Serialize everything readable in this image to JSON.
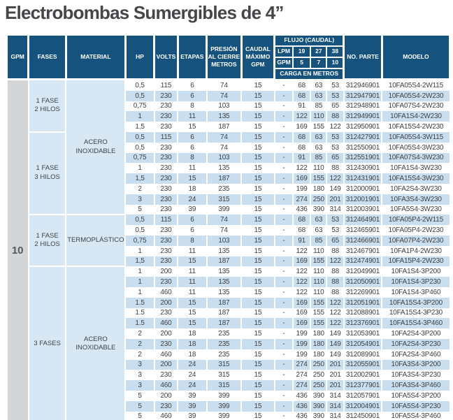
{
  "title": "Electrobombas Sumergibles de 4”",
  "colors": {
    "header_bg": "#15527e",
    "stripe": "#c9dff0",
    "group_bg": "#d7e8f4",
    "gpm_bg": "#d3d5d6",
    "text": "#3e4144"
  },
  "table": {
    "header": {
      "gpm": "GPM",
      "fases": "FASES",
      "material": "MATERIAL",
      "hp": "HP",
      "volts": "VOLTS",
      "etapas": "ETAPAS",
      "presion": "PRESIÓN\nAL CIERRE\nMETROS",
      "caudal": "CAUDAL\nMÁXIMO\nGPM",
      "flujo": "FLUJO (CAUDAL)",
      "lpm_label": "LPM",
      "lpm_values": [
        "19",
        "27",
        "38"
      ],
      "gpm_row_label": "GPM",
      "gpm_row_values": [
        "5",
        "7",
        "10"
      ],
      "carga": "CARGA EN METROS",
      "no_parte": "NO. PARTE",
      "modelo": "MODELO"
    },
    "gpm_value": "10",
    "col_names": [
      "hp",
      "volts",
      "etapas",
      "presion-cierre",
      "caudal-maximo",
      "flujo-dash",
      "carga-19",
      "carga-27",
      "carga-38",
      "no-parte",
      "modelo"
    ],
    "fases_groups": [
      {
        "label": [
          "1 FASE",
          "2 HILOS"
        ],
        "rows": 5
      },
      {
        "label": [
          "1 FASE",
          "3 HILOS"
        ],
        "rows": 8
      },
      {
        "label": [
          "1 FASE",
          "2 HILOS"
        ],
        "rows": 5
      },
      {
        "label": [
          "3 FASES"
        ],
        "rows": 15
      }
    ],
    "material_groups": [
      {
        "label": [
          "ACERO",
          "INOXIDABLE"
        ],
        "rows": 13
      },
      {
        "label": [
          "TERMOPLÁSTICO"
        ],
        "rows": 5
      },
      {
        "label": [
          "ACERO",
          "INOXIDABLE"
        ],
        "rows": 15
      }
    ],
    "rows": [
      [
        "0,5",
        "115",
        "6",
        "74",
        "15",
        "-",
        "68",
        "63",
        "53",
        "312946901",
        "10FA05S4-2W115"
      ],
      [
        "0,5",
        "230",
        "6",
        "74",
        "15",
        "-",
        "68",
        "63",
        "53",
        "312947901",
        "10FA05S4-2W230"
      ],
      [
        "0,75",
        "230",
        "8",
        "103",
        "15",
        "-",
        "91",
        "85",
        "65",
        "312948901",
        "10FA07S4-2W230"
      ],
      [
        "1",
        "230",
        "11",
        "135",
        "15",
        "-",
        "122",
        "110",
        "88",
        "312949901",
        "10FA1S4-2W230"
      ],
      [
        "1,5",
        "230",
        "15",
        "187",
        "15",
        "-",
        "169",
        "155",
        "122",
        "312950901",
        "10FA15S4-2W230"
      ],
      [
        "0,5",
        "115",
        "6",
        "74",
        "15",
        "-",
        "68",
        "63",
        "53",
        "312427901",
        "10FA05S4-3W115"
      ],
      [
        "0,5",
        "230",
        "6",
        "74",
        "15",
        "-",
        "68",
        "63",
        "53",
        "312550901",
        "10FA05S4-3W230"
      ],
      [
        "0,75",
        "230",
        "8",
        "103",
        "15",
        "-",
        "91",
        "85",
        "65",
        "312551901",
        "10FA07S4-3W230"
      ],
      [
        "1",
        "230",
        "11",
        "135",
        "15",
        "-",
        "122",
        "110",
        "88",
        "312430901",
        "10FA1S4-3W230"
      ],
      [
        "1,5",
        "230",
        "15",
        "187",
        "15",
        "-",
        "169",
        "155",
        "122",
        "312431901",
        "10FA15S4-3W230"
      ],
      [
        "2",
        "230",
        "18",
        "235",
        "15",
        "-",
        "199",
        "180",
        "149",
        "312000901",
        "10FA2S4-3W230"
      ],
      [
        "3",
        "230",
        "24",
        "315",
        "15",
        "-",
        "274",
        "250",
        "201",
        "312001901",
        "10FA3S4-3W230"
      ],
      [
        "5",
        "230",
        "39",
        "399",
        "15",
        "-",
        "436",
        "390",
        "314",
        "312003901",
        "10FA5S4-3W230"
      ],
      [
        "0,5",
        "115",
        "6",
        "74",
        "15",
        "-",
        "68",
        "63",
        "53",
        "312464901",
        "10FA05P4-2W115"
      ],
      [
        "0,5",
        "230",
        "6",
        "74",
        "15",
        "-",
        "68",
        "63",
        "53",
        "312465901",
        "10FA05P4-2W230"
      ],
      [
        "0,75",
        "230",
        "8",
        "103",
        "15",
        "-",
        "91",
        "85",
        "65",
        "312466901",
        "10FA07P4-2W230"
      ],
      [
        "1",
        "230",
        "11",
        "135",
        "15",
        "-",
        "122",
        "110",
        "88",
        "312467901",
        "10FA1P4-2W230"
      ],
      [
        "1,5",
        "230",
        "15",
        "187",
        "15",
        "-",
        "169",
        "155",
        "122",
        "312474901",
        "10FA15P4-2W230"
      ],
      [
        "1",
        "200",
        "11",
        "135",
        "15",
        "-",
        "122",
        "110",
        "88",
        "312049901",
        "10FA1S4-3P200"
      ],
      [
        "1",
        "230",
        "11",
        "135",
        "15",
        "-",
        "122",
        "110",
        "88",
        "312050901",
        "10FA1S4-3P230"
      ],
      [
        "1",
        "460",
        "11",
        "135",
        "15",
        "-",
        "122",
        "110",
        "88",
        "312269901",
        "10FA1S4-3P460"
      ],
      [
        "1.5",
        "200",
        "15",
        "187",
        "15",
        "-",
        "169",
        "155",
        "122",
        "312051901",
        "10FA15S4-3P200"
      ],
      [
        "1.5",
        "230",
        "15",
        "187",
        "15",
        "-",
        "169",
        "155",
        "122",
        "312088901",
        "10FA15S4-3P230"
      ],
      [
        "1.5",
        "460",
        "15",
        "187",
        "15",
        "-",
        "169",
        "155",
        "122",
        "312376901",
        "10FA15S4-3P460"
      ],
      [
        "2",
        "200",
        "18",
        "235",
        "15",
        "-",
        "199",
        "180",
        "149",
        "312053901",
        "10FA2S4-3P200"
      ],
      [
        "2",
        "230",
        "18",
        "235",
        "15",
        "-",
        "199",
        "180",
        "149",
        "312054901",
        "10FA2S4-3P230"
      ],
      [
        "2",
        "460",
        "18",
        "235",
        "15",
        "-",
        "199",
        "180",
        "149",
        "312089901",
        "10FA2S4-3P460"
      ],
      [
        "3",
        "200",
        "24",
        "315",
        "15",
        "-",
        "274",
        "250",
        "201",
        "312055901",
        "10FA3S4-3P200"
      ],
      [
        "3",
        "230",
        "24",
        "315",
        "15",
        "-",
        "274",
        "250",
        "201",
        "312002901",
        "10FA3S4-3P230"
      ],
      [
        "3",
        "460",
        "24",
        "315",
        "15",
        "-",
        "274",
        "250",
        "201",
        "312377901",
        "10FA3S4-3P460"
      ],
      [
        "5",
        "200",
        "39",
        "399",
        "15",
        "-",
        "436",
        "390",
        "314",
        "312057901",
        "10FA5S4-3P200"
      ],
      [
        "5",
        "230",
        "39",
        "399",
        "15",
        "-",
        "436",
        "390",
        "314",
        "312004901",
        "10FA5S4-3P230"
      ],
      [
        "5",
        "460",
        "39",
        "399",
        "15",
        "-",
        "436",
        "390",
        "314",
        "312450901",
        "10FA5S4-3P460"
      ]
    ]
  }
}
